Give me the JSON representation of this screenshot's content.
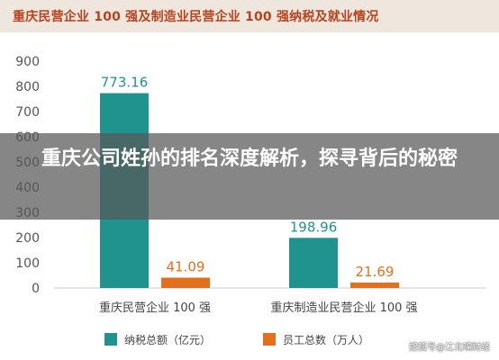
{
  "header": {
    "title": "重庆民营企业 100 强及制造业民营企业 100 强纳税及就业情况"
  },
  "watermark": {
    "text": "江北嘴财经"
  },
  "overlay": {
    "headline": "重庆公司姓孙的排名深度解析，探寻背后的秘密"
  },
  "footer": {
    "credit": "搜狐号@江北嘴财经"
  },
  "colors": {
    "teal": "#20938f",
    "orange": "#e3701c",
    "title": "#b8431f",
    "text": "#555555"
  },
  "chart_data": {
    "type": "bar",
    "title": "重庆民营企业 100 强及制造业民营企业 100 强纳税及就业情况",
    "categories": [
      "重庆民营企业 100 强",
      "重庆制造业民营企业 100 强"
    ],
    "series": [
      {
        "name": "纳税总额（亿元）",
        "values": [
          773.16,
          198.96
        ],
        "labels": [
          "773.16",
          "198.96"
        ],
        "color": "#20938f"
      },
      {
        "name": "员工总数（万人）",
        "values": [
          41.09,
          21.69
        ],
        "labels": [
          "41.09",
          "21.69"
        ],
        "color": "#e3701c"
      }
    ],
    "yticks": [
      "0",
      "100",
      "200",
      "300",
      "400",
      "500",
      "600",
      "700",
      "800",
      "900"
    ],
    "ylim": [
      0,
      900
    ],
    "grid": false,
    "legend_position": "bottom-center"
  }
}
